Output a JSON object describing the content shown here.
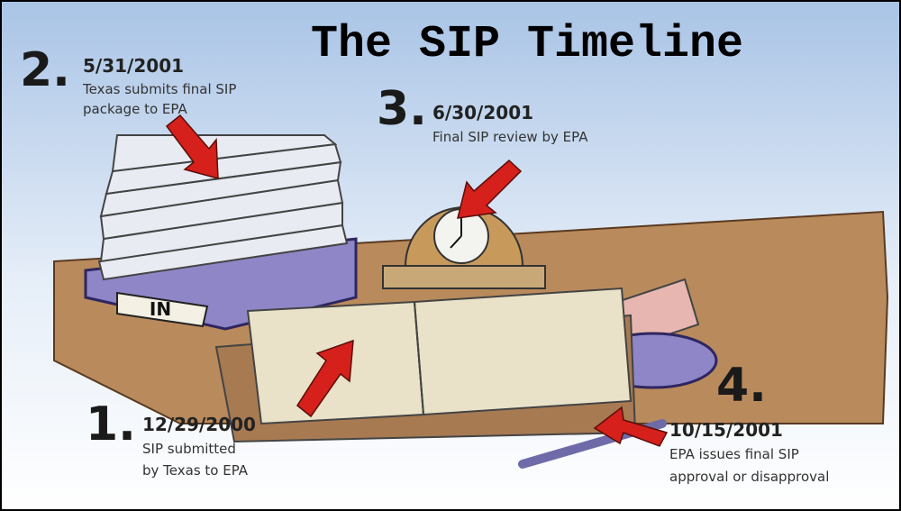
{
  "title": "The SIP Timeline",
  "tray_label": "IN",
  "steps": [
    {
      "number": "1.",
      "date": "12/29/2000",
      "description": [
        "SIP submitted",
        "by Texas to EPA"
      ]
    },
    {
      "number": "2.",
      "date": "5/31/2001",
      "description": [
        "Texas submits final SIP",
        "package to EPA"
      ]
    },
    {
      "number": "3.",
      "date": "6/30/2001",
      "description": [
        "Final SIP review by EPA"
      ]
    },
    {
      "number": "4.",
      "date": "10/15/2001",
      "description": [
        "EPA issues final SIP",
        "approval or disapproval"
      ]
    }
  ]
}
